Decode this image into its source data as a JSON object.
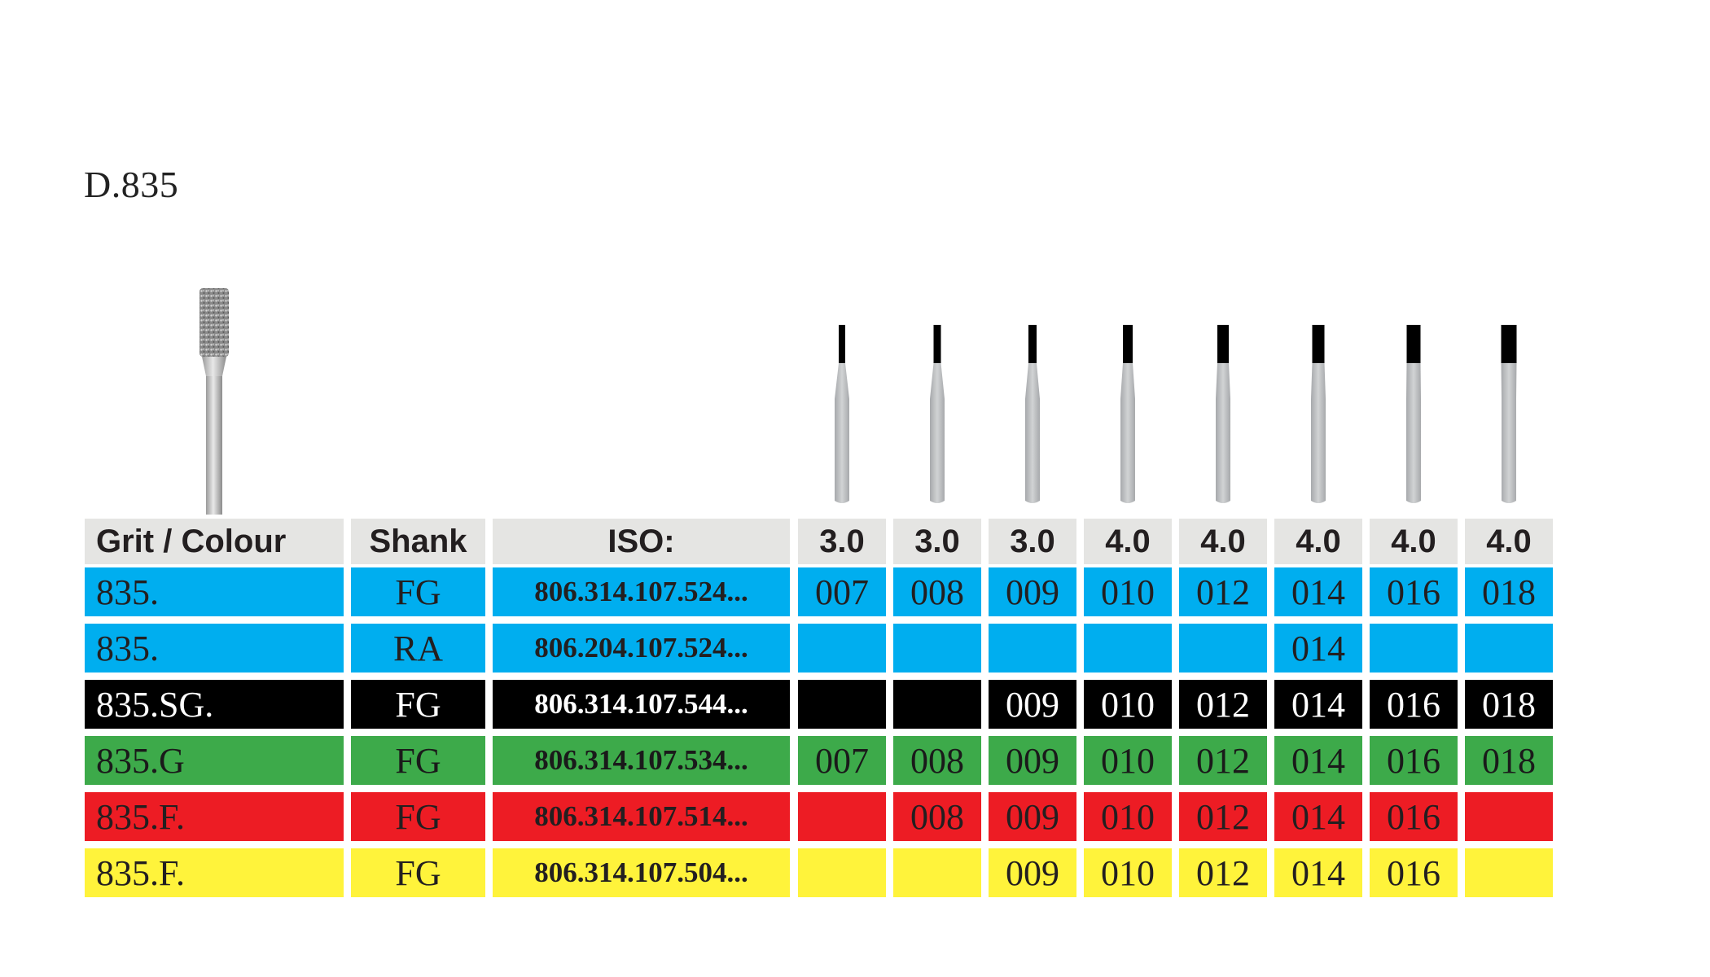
{
  "title": "D.835",
  "headers": {
    "grit": "Grit / Colour",
    "shank": "Shank",
    "iso": "ISO:",
    "lengths": [
      "3.0",
      "3.0",
      "3.0",
      "4.0",
      "4.0",
      "4.0",
      "4.0",
      "4.0"
    ]
  },
  "rows": [
    {
      "grit": "835.",
      "shank": "FG",
      "iso": "806.314.107.524...",
      "color": "blue",
      "sizes": [
        "007",
        "008",
        "009",
        "010",
        "012",
        "014",
        "016",
        "018"
      ]
    },
    {
      "grit": "835.",
      "shank": "RA",
      "iso": "806.204.107.524...",
      "color": "blue",
      "sizes": [
        "",
        "",
        "",
        "",
        "",
        "014",
        "",
        ""
      ]
    },
    {
      "grit": "835.SG.",
      "shank": "FG",
      "iso": "806.314.107.544...",
      "color": "black",
      "sizes": [
        "",
        "",
        "009",
        "010",
        "012",
        "014",
        "016",
        "018"
      ]
    },
    {
      "grit": "835.G",
      "shank": "FG",
      "iso": "806.314.107.534...",
      "color": "green",
      "sizes": [
        "007",
        "008",
        "009",
        "010",
        "012",
        "014",
        "016",
        "018"
      ]
    },
    {
      "grit": "835.F.",
      "shank": "FG",
      "iso": "806.314.107.514...",
      "color": "red",
      "sizes": [
        "",
        "008",
        "009",
        "010",
        "012",
        "014",
        "016",
        ""
      ]
    },
    {
      "grit": "835.F.",
      "shank": "FG",
      "iso": "806.314.107.504...",
      "color": "yellow",
      "sizes": [
        "",
        "",
        "009",
        "010",
        "012",
        "014",
        "016",
        ""
      ]
    }
  ],
  "colors": {
    "blue": "#00aeef",
    "black": "#000000",
    "green": "#3daa4a",
    "red": "#ed1c24",
    "yellow": "#fff33b",
    "header": "#e5e5e3"
  }
}
